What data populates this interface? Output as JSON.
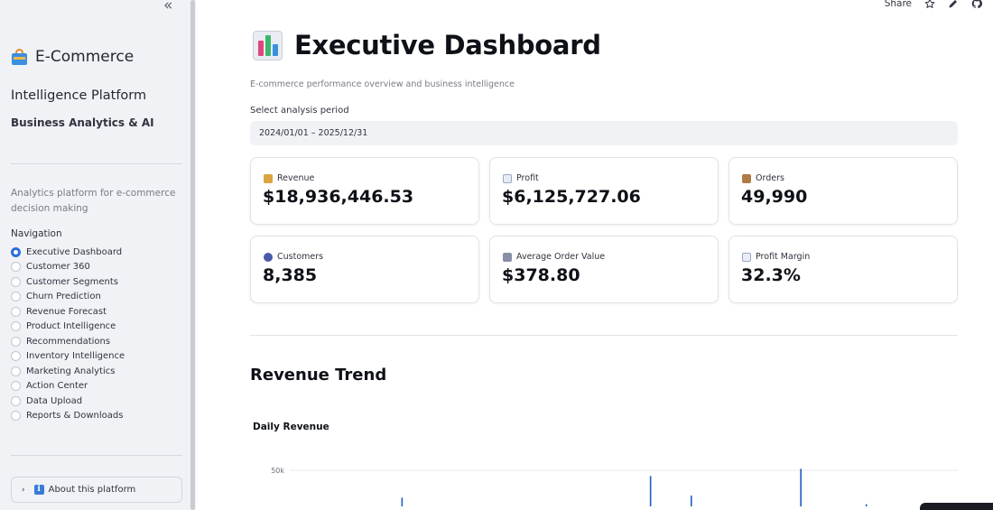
{
  "sidebar": {
    "brand_title": "E-Commerce",
    "subtitle": "Intelligence Platform",
    "tagline": "Business Analytics & AI",
    "description": "Analytics platform for e-commerce decision making",
    "nav_label": "Navigation",
    "nav_items": [
      {
        "label": "Executive Dashboard",
        "selected": true
      },
      {
        "label": "Customer 360",
        "selected": false
      },
      {
        "label": "Customer Segments",
        "selected": false
      },
      {
        "label": "Churn Prediction",
        "selected": false
      },
      {
        "label": "Revenue Forecast",
        "selected": false
      },
      {
        "label": "Product Intelligence",
        "selected": false
      },
      {
        "label": "Recommendations",
        "selected": false
      },
      {
        "label": "Inventory Intelligence",
        "selected": false
      },
      {
        "label": "Marketing Analytics",
        "selected": false
      },
      {
        "label": "Action Center",
        "selected": false
      },
      {
        "label": "Data Upload",
        "selected": false
      },
      {
        "label": "Reports & Downloads",
        "selected": false
      }
    ],
    "about_label": "About this platform",
    "collapse_icon": "double-chevron-left-icon"
  },
  "toolbar": {
    "share_label": "Share",
    "icons": [
      "star-icon",
      "pencil-icon",
      "github-icon"
    ]
  },
  "main": {
    "title": "Executive Dashboard",
    "subtitle": "E-commerce performance overview and business intelligence",
    "period_label": "Select analysis period",
    "period_value": "2024/01/01 – 2025/12/31",
    "metrics": [
      {
        "label": "Revenue",
        "value": "$18,936,446.53",
        "icon": "money-bag-icon"
      },
      {
        "label": "Profit",
        "value": "$6,125,727.06",
        "icon": "chart-increasing-icon"
      },
      {
        "label": "Orders",
        "value": "49,990",
        "icon": "package-icon"
      },
      {
        "label": "Customers",
        "value": "8,385",
        "icon": "people-icon"
      },
      {
        "label": "Average Order Value",
        "value": "$378.80",
        "icon": "shopping-cart-icon"
      },
      {
        "label": "Profit Margin",
        "value": "32.3%",
        "icon": "bar-chart-icon"
      }
    ],
    "section_title": "Revenue Trend"
  },
  "chart_data": {
    "type": "bar",
    "title": "Daily Revenue",
    "xlabel": "",
    "ylabel": "",
    "y_ticks": [
      "50k"
    ],
    "ylim": [
      0,
      50000
    ],
    "grid": true,
    "series_color": "#1f5fbf",
    "visible_spikes_x_fraction": [
      0.167,
      0.539,
      0.6,
      0.764,
      0.862
    ],
    "visible_spikes_value": [
      12000,
      42000,
      15000,
      52000,
      3000
    ]
  },
  "colors": {
    "accent": "#2b6fd6",
    "sidebar_bg": "#f0f2f6"
  }
}
